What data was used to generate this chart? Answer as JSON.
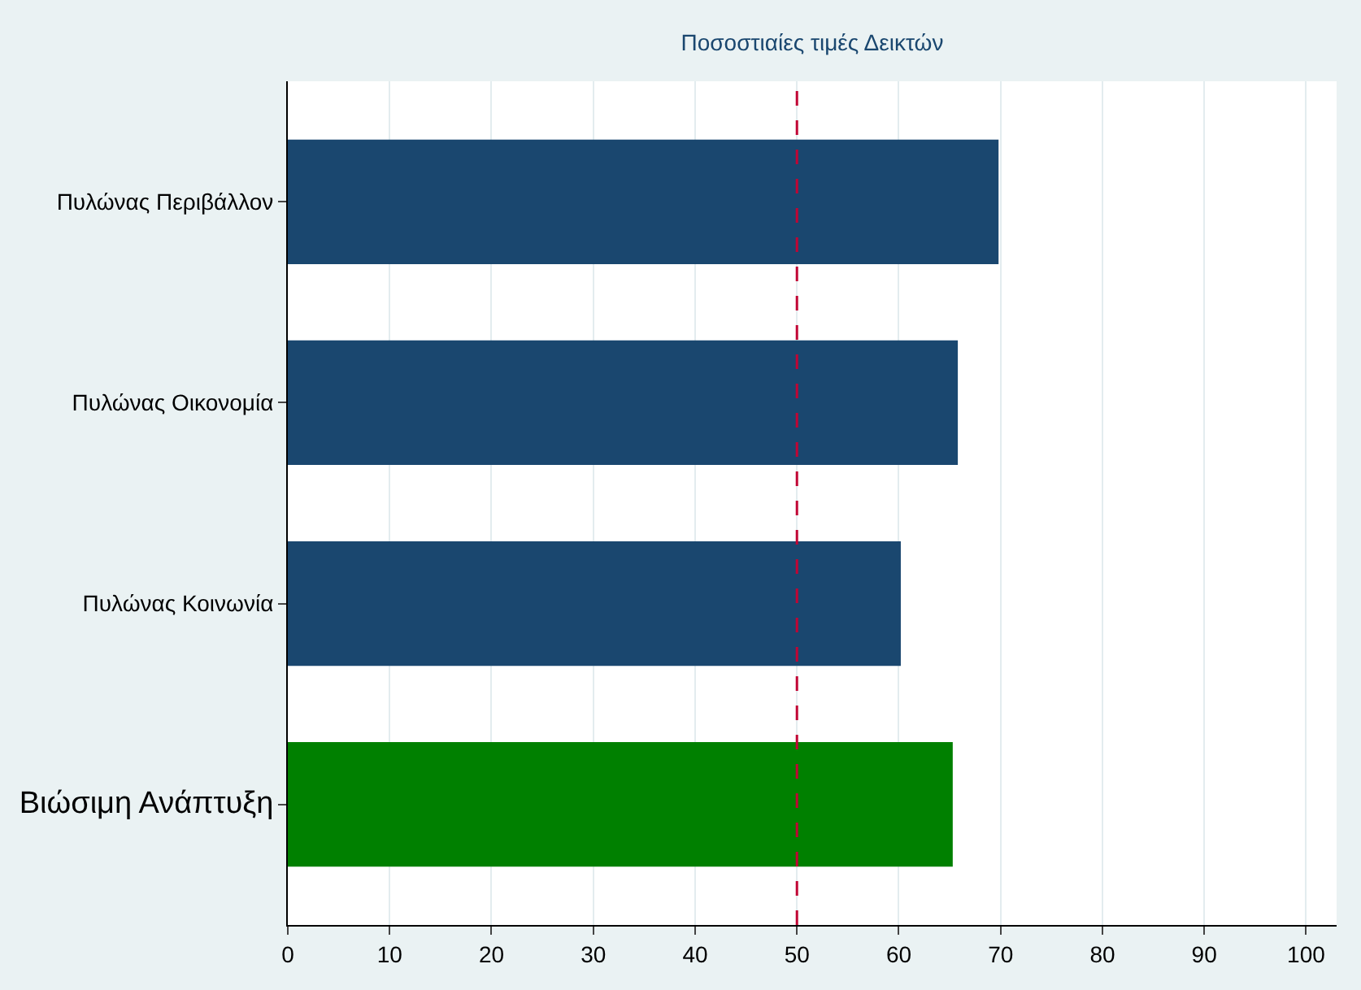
{
  "chart_data": {
    "type": "bar",
    "orientation": "horizontal",
    "title": "Ποσοστιαίες τιμές Δεικτών",
    "categories": [
      "Πυλώνας Περιβάλλον",
      "Πυλώνας Οικονομία",
      "Πυλώνας Κοινωνία",
      "Βιώσιμη Ανάπτυξη"
    ],
    "values": [
      69.8,
      65.8,
      60.2,
      65.3
    ],
    "colors": [
      "#1a476f",
      "#1a476f",
      "#1a476f",
      "#008000"
    ],
    "xlim": [
      0,
      103
    ],
    "xticks": [
      0,
      10,
      20,
      30,
      40,
      50,
      60,
      70,
      80,
      90,
      100
    ],
    "grid": "x",
    "ref_lines": [
      {
        "axis": "x",
        "value": 50,
        "color": "#c10534",
        "line_style": "dashed"
      }
    ]
  }
}
